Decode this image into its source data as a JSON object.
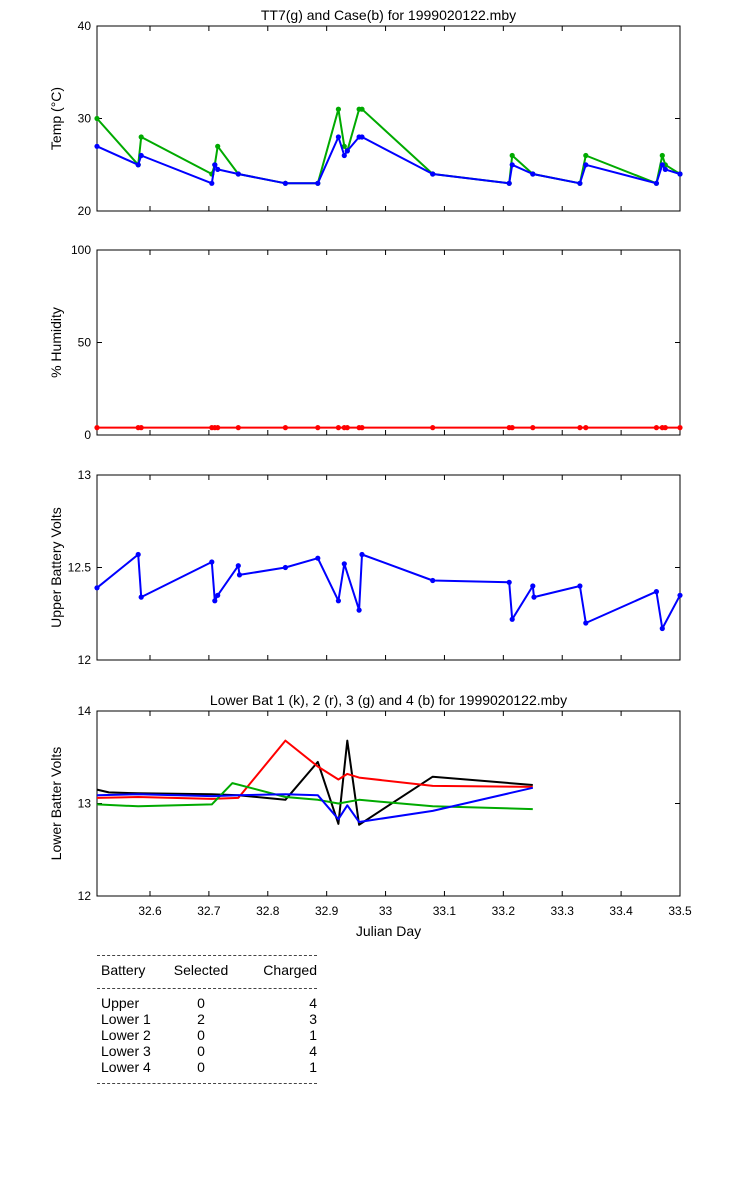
{
  "colors": {
    "black": "#000000",
    "red": "#ff0000",
    "green": "#00aa00",
    "blue": "#0000ff"
  },
  "chart_data": [
    {
      "type": "line",
      "title": "TT7(g) and Case(b) for 1999020122.mby",
      "ylabel": "Temp  (°C)",
      "xlim": [
        32.51,
        33.5
      ],
      "ylim": [
        20,
        40
      ],
      "yticks": [
        20,
        30,
        40
      ],
      "markers": true,
      "series": [
        {
          "color": "green",
          "x": [
            32.51,
            32.58,
            32.585,
            32.705,
            32.71,
            32.715,
            32.75,
            32.83,
            32.885,
            32.92,
            32.93,
            32.935,
            32.955,
            32.96,
            33.08,
            33.21,
            33.215,
            33.25,
            33.33,
            33.34,
            33.46,
            33.47,
            33.475,
            33.5
          ],
          "y": [
            30,
            25,
            28,
            24,
            25,
            27,
            24,
            23,
            23,
            31,
            27,
            26.5,
            31,
            31,
            24,
            23,
            26,
            24,
            23,
            26,
            23,
            26,
            25,
            24
          ]
        },
        {
          "color": "blue",
          "x": [
            32.51,
            32.58,
            32.585,
            32.705,
            32.71,
            32.715,
            32.75,
            32.83,
            32.885,
            32.92,
            32.93,
            32.935,
            32.955,
            32.96,
            33.08,
            33.21,
            33.215,
            33.25,
            33.33,
            33.34,
            33.46,
            33.47,
            33.475,
            33.5
          ],
          "y": [
            27,
            25,
            26,
            23,
            25,
            24.5,
            24,
            23,
            23,
            28,
            26,
            26.5,
            28,
            28,
            24,
            23,
            25,
            24,
            23,
            25,
            23,
            25,
            24.5,
            24
          ]
        }
      ]
    },
    {
      "type": "line",
      "title": "",
      "ylabel": "% Humidity",
      "xlim": [
        32.51,
        33.5
      ],
      "ylim": [
        0,
        100
      ],
      "yticks": [
        0,
        50,
        100
      ],
      "markers": true,
      "series": [
        {
          "color": "red",
          "x": [
            32.51,
            32.58,
            32.585,
            32.705,
            32.71,
            32.715,
            32.75,
            32.83,
            32.885,
            32.92,
            32.93,
            32.935,
            32.955,
            32.96,
            33.08,
            33.21,
            33.215,
            33.25,
            33.33,
            33.34,
            33.46,
            33.47,
            33.475,
            33.5
          ],
          "y": [
            4,
            4,
            4,
            4,
            4,
            4,
            4,
            4,
            4,
            4,
            4,
            4,
            4,
            4,
            4,
            4,
            4,
            4,
            4,
            4,
            4,
            4,
            4,
            4
          ]
        }
      ]
    },
    {
      "type": "line",
      "title": "",
      "ylabel": "Upper Battery Volts",
      "xlim": [
        32.51,
        33.5
      ],
      "ylim": [
        12,
        13
      ],
      "yticks": [
        12,
        12.5,
        13
      ],
      "markers": true,
      "series": [
        {
          "color": "blue",
          "x": [
            32.51,
            32.58,
            32.585,
            32.705,
            32.71,
            32.715,
            32.75,
            32.752,
            32.83,
            32.885,
            32.92,
            32.93,
            32.955,
            32.96,
            33.08,
            33.21,
            33.215,
            33.25,
            33.252,
            33.33,
            33.34,
            33.46,
            33.47,
            33.5
          ],
          "y": [
            12.39,
            12.57,
            12.34,
            12.53,
            12.32,
            12.35,
            12.51,
            12.46,
            12.5,
            12.55,
            12.32,
            12.52,
            12.27,
            12.57,
            12.43,
            12.42,
            12.22,
            12.4,
            12.34,
            12.4,
            12.2,
            12.37,
            12.17,
            12.35
          ]
        }
      ]
    },
    {
      "type": "line",
      "title": "Lower Bat 1 (k), 2 (r), 3 (g) and 4 (b) for 1999020122.mby",
      "xlabel": "Julian Day",
      "ylabel": "Lower Batter Volts",
      "xlim": [
        32.51,
        33.5
      ],
      "ylim": [
        12,
        14
      ],
      "yticks": [
        12,
        13,
        14
      ],
      "xticks": [
        32.6,
        32.7,
        32.8,
        32.9,
        33,
        33.1,
        33.2,
        33.3,
        33.4,
        33.5
      ],
      "markers": false,
      "series": [
        {
          "color": "black",
          "x": [
            32.51,
            32.53,
            32.58,
            32.705,
            32.75,
            32.83,
            32.885,
            32.92,
            32.935,
            32.955,
            33.08,
            33.25
          ],
          "y": [
            13.15,
            13.12,
            13.11,
            13.1,
            13.09,
            13.04,
            13.45,
            12.78,
            13.68,
            12.77,
            13.29,
            13.2
          ]
        },
        {
          "color": "red",
          "x": [
            32.51,
            32.58,
            32.705,
            32.75,
            32.83,
            32.885,
            32.92,
            32.935,
            32.955,
            33.08,
            33.25
          ],
          "y": [
            13.06,
            13.07,
            13.05,
            13.06,
            13.68,
            13.4,
            13.26,
            13.32,
            13.28,
            13.19,
            13.18
          ]
        },
        {
          "color": "green",
          "x": [
            32.51,
            32.58,
            32.705,
            32.74,
            32.83,
            32.885,
            32.92,
            32.955,
            33.08,
            33.25
          ],
          "y": [
            12.99,
            12.97,
            12.99,
            13.22,
            13.07,
            13.04,
            13.0,
            13.04,
            12.97,
            12.94
          ]
        },
        {
          "color": "blue",
          "x": [
            32.51,
            32.58,
            32.705,
            32.75,
            32.83,
            32.885,
            32.92,
            32.935,
            32.955,
            33.08,
            33.25
          ],
          "y": [
            13.09,
            13.1,
            13.08,
            13.09,
            13.1,
            13.09,
            12.83,
            12.98,
            12.8,
            12.92,
            13.17
          ]
        }
      ]
    }
  ],
  "battery_table": {
    "headers": [
      "Battery",
      "Selected",
      "Charged"
    ],
    "rows": [
      [
        "Upper",
        "0",
        "4"
      ],
      [
        "Lower 1",
        "2",
        "3"
      ],
      [
        "Lower 2",
        "0",
        "1"
      ],
      [
        "Lower 3",
        "0",
        "4"
      ],
      [
        "Lower 4",
        "0",
        "1"
      ]
    ]
  }
}
